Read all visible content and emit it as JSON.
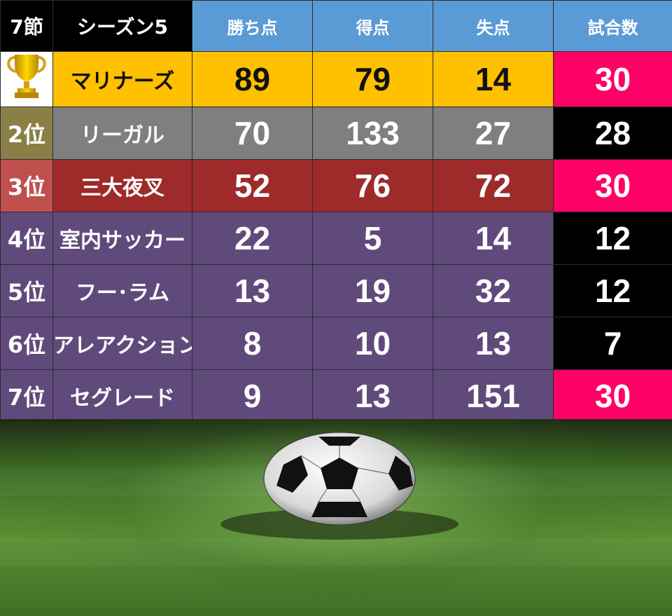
{
  "header": {
    "round": "7節",
    "season": "シーズン5",
    "columns": [
      "勝ち点",
      "得点",
      "失点",
      "試合数"
    ]
  },
  "standings": [
    {
      "rank": "",
      "team": "マリナーズ",
      "points": "89",
      "goals_for": "79",
      "goals_against": "14",
      "games": "30",
      "rank_bg": "#ffffff",
      "team_bg": "#ffc000",
      "stats_bg": "#ffc000",
      "games_bg": "#ff0066",
      "dark": true
    },
    {
      "rank": "2位",
      "team": "リーガル",
      "points": "70",
      "goals_for": "133",
      "goals_against": "27",
      "games": "28",
      "rank_bg": "#8a7f46",
      "team_bg": "#7f7f7f",
      "stats_bg": "#7f7f7f",
      "games_bg": "#000000",
      "dark": false
    },
    {
      "rank": "3位",
      "team": "三大夜叉",
      "points": "52",
      "goals_for": "76",
      "goals_against": "72",
      "games": "30",
      "rank_bg": "#c0504d",
      "team_bg": "#9e2a2a",
      "stats_bg": "#9e2a2a",
      "games_bg": "#ff0066",
      "dark": false
    },
    {
      "rank": "4位",
      "team": "室内サッカー",
      "points": "22",
      "goals_for": "5",
      "goals_against": "14",
      "games": "12",
      "rank_bg": "#604a7b",
      "team_bg": "#604a7b",
      "stats_bg": "#604a7b",
      "games_bg": "#000000",
      "dark": false
    },
    {
      "rank": "5位",
      "team": "フー･ラム",
      "points": "13",
      "goals_for": "19",
      "goals_against": "32",
      "games": "12",
      "rank_bg": "#604a7b",
      "team_bg": "#604a7b",
      "stats_bg": "#604a7b",
      "games_bg": "#000000",
      "dark": false
    },
    {
      "rank": "6位",
      "team": "アレアクション",
      "points": "8",
      "goals_for": "10",
      "goals_against": "13",
      "games": "7",
      "rank_bg": "#604a7b",
      "team_bg": "#604a7b",
      "stats_bg": "#604a7b",
      "games_bg": "#000000",
      "dark": false
    },
    {
      "rank": "7位",
      "team": "セグレード",
      "points": "9",
      "goals_for": "13",
      "goals_against": "151",
      "games": "30",
      "rank_bg": "#604a7b",
      "team_bg": "#604a7b",
      "stats_bg": "#604a7b",
      "games_bg": "#ff0066",
      "dark": false
    }
  ],
  "icons": {
    "first_place": "trophy-icon",
    "background": "soccer-ball-icon"
  }
}
